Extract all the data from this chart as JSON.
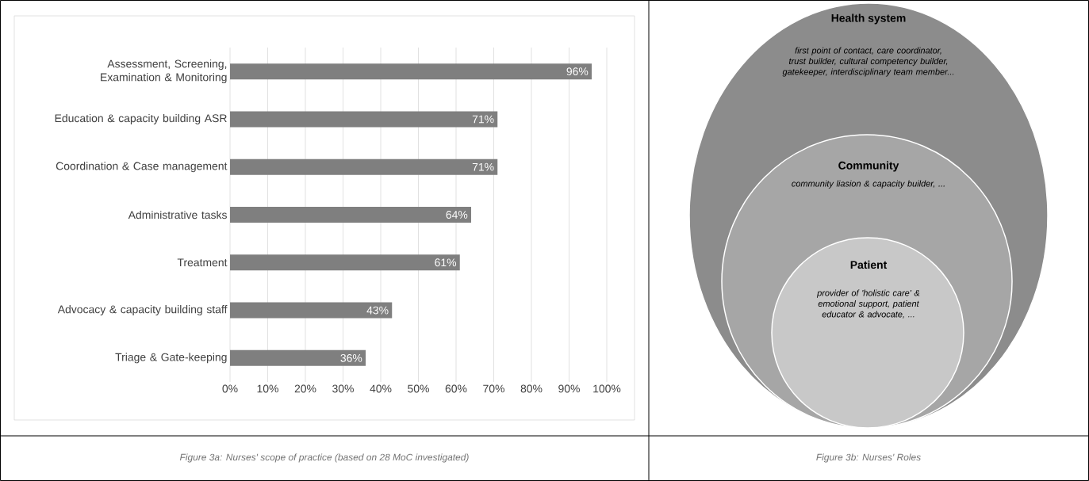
{
  "chart_data": [
    {
      "type": "bar",
      "orientation": "horizontal",
      "categories": [
        "Assessment, Screening, Examination & Monitoring",
        "Education & capacity building ASR",
        "Coordination & Case management",
        "Administrative tasks",
        "Treatment",
        "Advocacy & capacity building staff",
        "Triage & Gate-keeping"
      ],
      "values": [
        96,
        71,
        71,
        64,
        61,
        43,
        36
      ],
      "value_labels": [
        "96%",
        "71%",
        "71%",
        "64%",
        "61%",
        "43%",
        "36%"
      ],
      "color": "#7f7f7f",
      "xlim": [
        0,
        100
      ],
      "xticks": [
        {
          "value": 0,
          "label": "0%"
        },
        {
          "value": 10,
          "label": "10%"
        },
        {
          "value": 20,
          "label": "20%"
        },
        {
          "value": 30,
          "label": "30%"
        },
        {
          "value": 40,
          "label": "40%"
        },
        {
          "value": 50,
          "label": "50%"
        },
        {
          "value": 60,
          "label": "60%"
        },
        {
          "value": 70,
          "label": "70%"
        },
        {
          "value": 80,
          "label": "80%"
        },
        {
          "value": 90,
          "label": "90%"
        },
        {
          "value": 100,
          "label": "100%"
        }
      ],
      "grid": "x",
      "annotations": [
        "Figure 3a: Nurses' scope of practice (based on 28 MoC investigated)"
      ]
    },
    {
      "type": "other",
      "annotations": [
        "Health system",
        "first point of contact, care coordinator, trust builder, cultural competency builder, gatekeeper, interdisciplinary team member...",
        "Community",
        "community liasion & capacity builder, ...",
        "Patient",
        "provider of 'holistic care' & emotional support, patient educator & advocate, ...",
        "Figure 3b: Nurses' Roles"
      ]
    }
  ]
}
